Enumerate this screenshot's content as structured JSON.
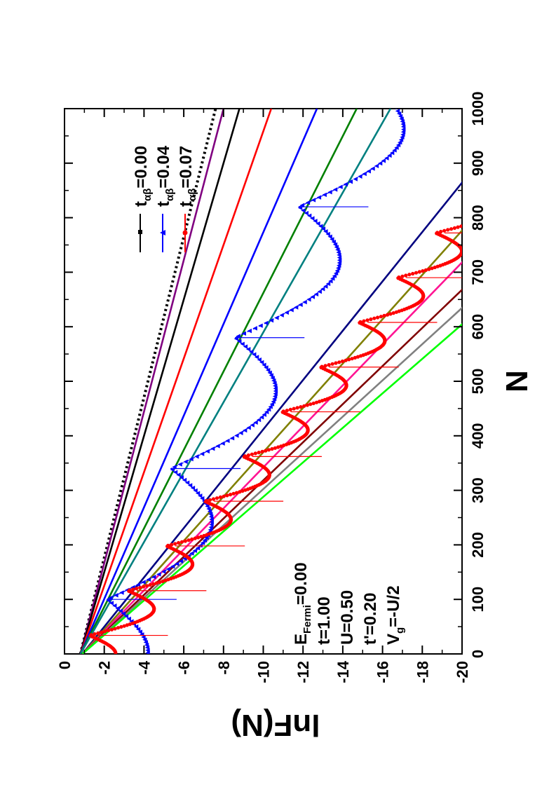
{
  "chart_data": {
    "type": "line",
    "rotation": "rotated 90 degrees counter-clockwise",
    "xlabel": "N",
    "ylabel": "lnF(N)",
    "xlim": [
      0,
      1000
    ],
    "ylim": [
      -20,
      0
    ],
    "xticks": [
      "0",
      "100",
      "200",
      "300",
      "400",
      "500",
      "600",
      "700",
      "800",
      "900",
      "1000"
    ],
    "yticks": [
      "0",
      "-2",
      "-4",
      "-6",
      "-8",
      "-10",
      "-12",
      "-14",
      "-16",
      "-18",
      "-20"
    ],
    "grid": false,
    "legend_position": "top-right",
    "params": [
      {
        "main": "E",
        "sub": "Fermi",
        "rest": "=0.00"
      },
      {
        "main": "t=1.00",
        "sub": "",
        "rest": ""
      },
      {
        "main": "U=0.50",
        "sub": "",
        "rest": ""
      },
      {
        "main": "t'=0.20",
        "sub": "",
        "rest": ""
      },
      {
        "main": "V",
        "sub": "g",
        "rest": "=-U/2"
      }
    ],
    "legend": [
      {
        "main": "t",
        "sub": "αβ",
        "rest": "=0.00",
        "color": "#000000",
        "marker": "square"
      },
      {
        "main": "t",
        "sub": "αβ",
        "rest": "=0.04",
        "color": "#0000ff",
        "marker": "triangle"
      },
      {
        "main": "t",
        "sub": "αβ",
        "rest": "=0.07",
        "color": "#ff0000",
        "marker": "circle"
      }
    ],
    "straight_lines": [
      {
        "color": "#000000",
        "dotted": true,
        "y0": -0.8,
        "y1000": -7.6
      },
      {
        "color": "#800080",
        "y0": -0.8,
        "y1000": -8.0
      },
      {
        "color": "#000000",
        "y0": -0.8,
        "y1000": -8.8
      },
      {
        "color": "#ff0000",
        "y0": -0.8,
        "y1000": -10.4
      },
      {
        "color": "#0000ff",
        "y0": -0.8,
        "y1000": -12.7
      },
      {
        "color": "#008000",
        "y0": -0.8,
        "y1000": -14.7
      },
      {
        "color": "#008080",
        "y0": -0.8,
        "y1000": -16.4
      },
      {
        "color": "#000080",
        "y0": -0.9,
        "y1000": -23.0
      },
      {
        "color": "#808000",
        "y0": -0.9,
        "y1000": -25.5
      },
      {
        "color": "#ff1493",
        "y0": -0.9,
        "y1000": -27.5
      },
      {
        "color": "#800000",
        "y0": -0.9,
        "y1000": -29.5
      },
      {
        "color": "#808080",
        "y0": -0.9,
        "y1000": -31.0
      },
      {
        "color": "#00ff00",
        "y0": -0.9,
        "y1000": -32.5
      }
    ],
    "oscillating_series": [
      {
        "name": "t_ab=0.04",
        "color": "#0000ff",
        "marker": "triangle",
        "period": 240,
        "phase": 100,
        "base0": -0.8,
        "slope": -0.0134,
        "amp": 3.5,
        "shift": 0.0
      },
      {
        "name": "t_ab=0.07",
        "color": "#ff0000",
        "marker": "circle",
        "period": 82,
        "phase": 34,
        "base0": -0.9,
        "slope": -0.0236,
        "amp": 2.2,
        "shift": 0.45
      }
    ]
  }
}
